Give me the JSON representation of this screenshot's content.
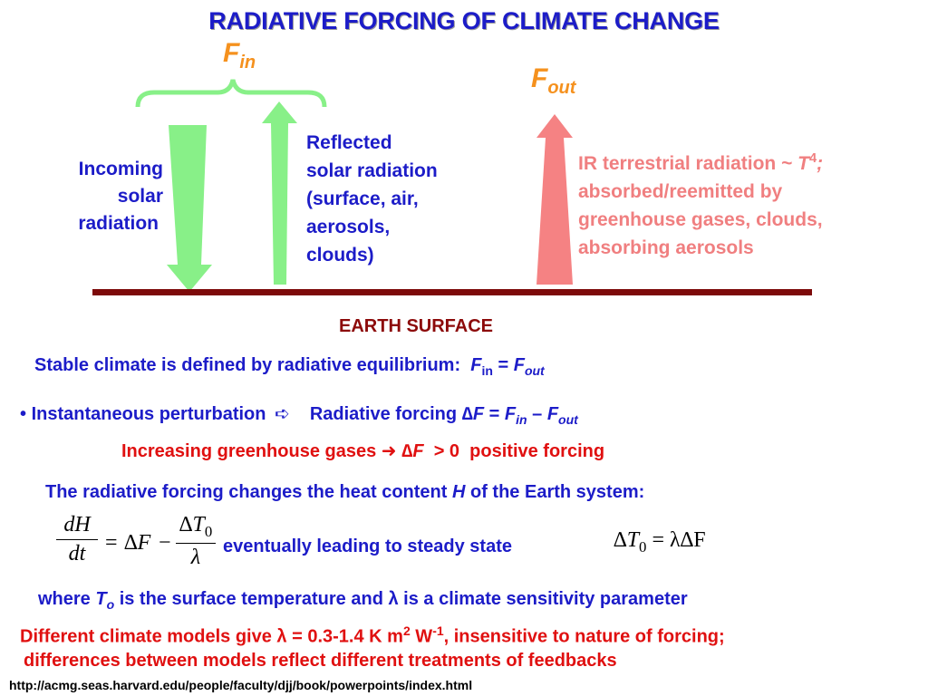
{
  "title": "RADIATIVE FORCING OF CLIMATE CHANGE",
  "diagram": {
    "f_in": {
      "symbol": "F",
      "sub": "in"
    },
    "f_out": {
      "symbol": "F",
      "sub": "out"
    },
    "incoming": [
      "Incoming",
      "solar",
      "radiation"
    ],
    "reflected": [
      "Reflected",
      "solar radiation",
      "(surface, air,",
      "aerosols,",
      "clouds)"
    ],
    "ir": {
      "line1_prefix": "IR terrestrial radiation ~ ",
      "line1_var": "T",
      "line1_exp": "4",
      "line1_suffix": ";",
      "lines": [
        "absorbed/reemitted by",
        "greenhouse gases, clouds,",
        "absorbing aerosols"
      ]
    },
    "surface_label": "EARTH SURFACE"
  },
  "text": {
    "stable": {
      "prefix": "Stable climate is defined by radiative equilibrium:  ",
      "fin": "F",
      "fin_sub": "in",
      "eq": " = ",
      "fout": "F",
      "fout_sub": "out"
    },
    "perturbation": {
      "bullet": "•",
      "label": "Instantaneous perturbation",
      "arrow": "➪",
      "rf": "Radiative forcing ",
      "delta": "∆",
      "F": "F",
      "eq": " = ",
      "Fin": "F",
      "in": "in",
      "minus": " – ",
      "Fout": "F",
      "out": "out"
    },
    "ghg": {
      "prefix": "Increasing greenhouse gases ",
      "arrow": "➜",
      "delta": "∆",
      "F": "F",
      "suffix": "  > 0  positive forcing"
    },
    "heat": {
      "prefix": "The radiative forcing changes the heat content ",
      "H": "H",
      "suffix": " of the Earth system:"
    },
    "equation": {
      "lhs_num": "dH",
      "lhs_den": "dt",
      "eq": "=",
      "dF": "∆F",
      "minus": "−",
      "rhs_num": "∆T",
      "rhs_num_sub": "0",
      "rhs_den": "λ",
      "middle": "eventually leading to steady state",
      "steady": "∆T",
      "steady_sub": "0",
      "steady_rhs": " = λ∆F"
    },
    "where": {
      "p1": "where ",
      "T": "T",
      "o": "o",
      "p2": " is the surface temperature and ",
      "lambda": "λ",
      "p3": " is a climate sensitivity parameter"
    },
    "models": {
      "p1": "Different climate models give ",
      "lambda": "λ",
      "p2": " = 0.3-1.4 K m",
      "m_exp": "2",
      "p3": " W",
      "w_exp": "-1",
      "p4": ", insensitive to nature of forcing;"
    },
    "models2": "differences between models reflect different treatments of feedbacks",
    "url": "http://acmg.seas.harvard.edu/people/faculty/djj/book/powerpoints/index.html"
  },
  "colors": {
    "blue": "#1c1cc8",
    "red": "#e01010",
    "pink": "#f07f80",
    "orange": "#f5911e",
    "green": "#88f088",
    "surface": "#7d0a0a"
  }
}
